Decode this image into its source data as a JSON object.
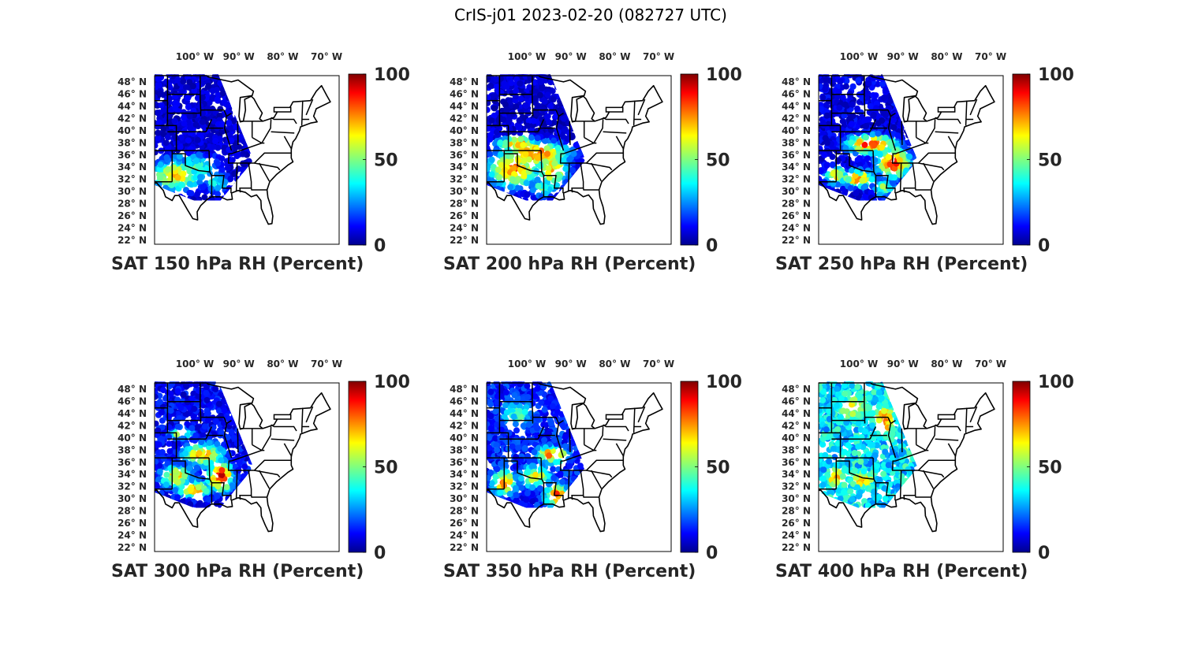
{
  "title": "CrIS-j01 2023-02-20 (082727 UTC)",
  "lon_labels": [
    "100",
    "90",
    "80",
    "70"
  ],
  "lon_suffix": "W",
  "lat_labels": [
    "48",
    "46",
    "44",
    "42",
    "40",
    "38",
    "36",
    "34",
    "32",
    "30",
    "28",
    "26",
    "24",
    "22"
  ],
  "lat_suffix": "N",
  "degree_symbol": "°",
  "colorbar": {
    "min": 0,
    "max": 100,
    "ticks": [
      "100",
      "50",
      "0"
    ],
    "colormap": "jet"
  },
  "map_extent": {
    "lon": [
      -107,
      -65
    ],
    "lat": [
      22,
      49
    ]
  },
  "panels": [
    {
      "caption": "SAT 150 hPa RH (Percent)",
      "level_hpa": 150
    },
    {
      "caption": "SAT 200 hPa RH (Percent)",
      "level_hpa": 200
    },
    {
      "caption": "SAT 250 hPa RH (Percent)",
      "level_hpa": 250
    },
    {
      "caption": "SAT 300 hPa RH (Percent)",
      "level_hpa": 300
    },
    {
      "caption": "SAT 350 hPa RH (Percent)",
      "level_hpa": 350
    },
    {
      "caption": "SAT 400 hPa RH (Percent)",
      "level_hpa": 400
    }
  ],
  "colors": {
    "outline": "#000000",
    "text": "#262626",
    "background": "#ffffff"
  }
}
